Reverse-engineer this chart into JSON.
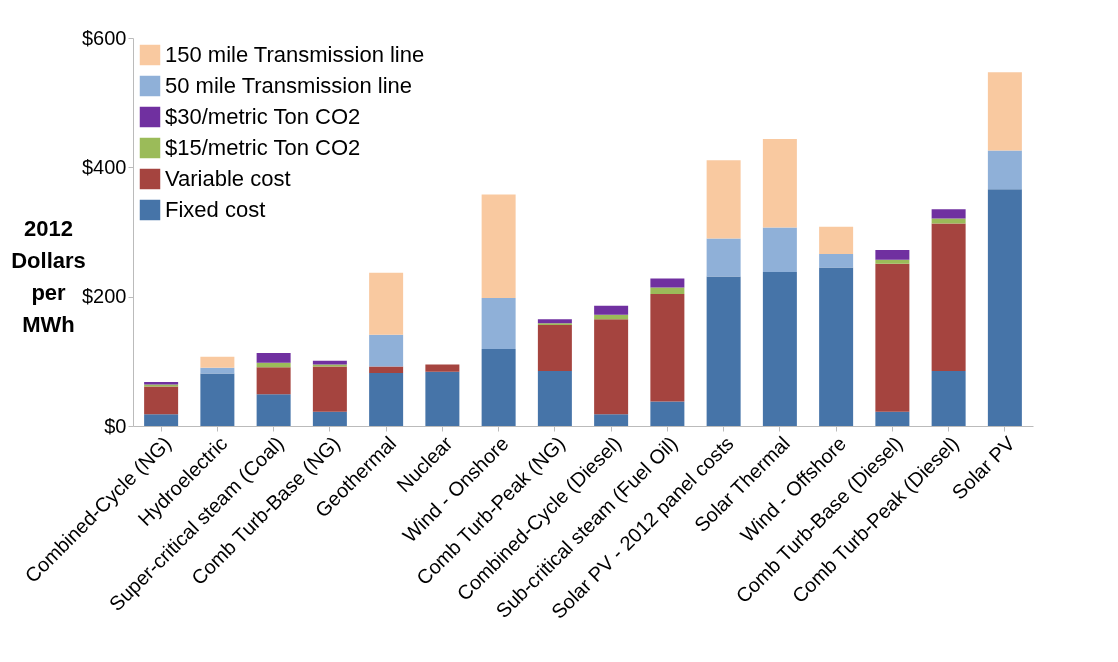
{
  "chart_data": {
    "type": "bar",
    "stacked": true,
    "ylabel": "2012 Dollars per MWh",
    "categories": [
      "Combined-Cycle (NG)",
      "Hydroelectric",
      "Super-critical steam (Coal)",
      "Comb Turb-Base (NG)",
      "Geothermal",
      "Nuclear",
      "Wind - Onshore",
      "Comb Turb-Peak (NG)",
      "Combined-Cycle (Diesel)",
      "Sub-critical steam (Fuel Oil)",
      "Solar PV - 2012 panel costs",
      "Solar Thermal",
      "Wind - Offshore",
      "Comb Turb-Base (Diesel)",
      "Comb Turb-Peak (Diesel)",
      "Solar PV"
    ],
    "series": [
      {
        "name": "Fixed cost",
        "color": "#4674a8",
        "values": [
          18,
          81,
          49,
          22,
          82,
          84,
          119,
          85,
          18,
          38,
          231,
          238,
          245,
          22,
          85,
          366
        ]
      },
      {
        "name": "Variable cost",
        "color": "#a5443f",
        "values": [
          43,
          0,
          42,
          70,
          10,
          11,
          0,
          71,
          147,
          166,
          0,
          0,
          0,
          229,
          228,
          0
        ]
      },
      {
        "name": "$15/metric Ton CO2",
        "color": "#9bbb59",
        "values": [
          3,
          0,
          7,
          3,
          0,
          0,
          0,
          3,
          7,
          10,
          0,
          0,
          0,
          6,
          8,
          0
        ]
      },
      {
        "name": "$30/metric Ton CO2",
        "color": "#7030a0",
        "values": [
          4,
          0,
          15,
          6,
          0,
          0,
          0,
          6,
          14,
          14,
          0,
          0,
          0,
          15,
          14,
          0
        ]
      },
      {
        "name": "50 mile Transmission line",
        "color": "#8fb0d8",
        "values": [
          0,
          9,
          0,
          0,
          49,
          0,
          79,
          0,
          0,
          0,
          59,
          69,
          21,
          0,
          0,
          60
        ]
      },
      {
        "name": "150 mile Transmission line",
        "color": "#f9c9a0",
        "values": [
          0,
          17,
          0,
          0,
          96,
          0,
          160,
          0,
          0,
          0,
          121,
          137,
          42,
          0,
          0,
          121
        ]
      }
    ],
    "ylim": [
      0,
      600
    ],
    "yticks": [
      {
        "value": 0,
        "label": "$0"
      },
      {
        "value": 200,
        "label": "$200"
      },
      {
        "value": 400,
        "label": "$400"
      },
      {
        "value": 600,
        "label": "$600"
      }
    ],
    "grid": false,
    "legend": "top left"
  }
}
